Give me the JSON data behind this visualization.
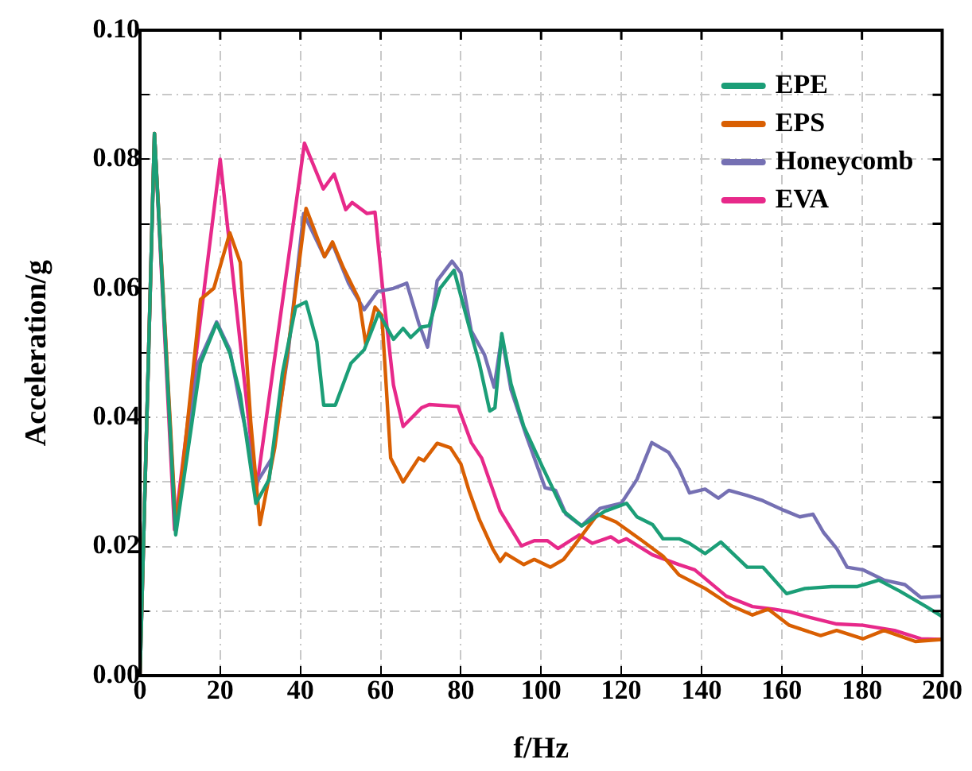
{
  "chart_data": {
    "type": "line",
    "xlabel": "f/Hz",
    "ylabel": "Acceleration/g",
    "xlim": [
      0,
      200
    ],
    "ylim": [
      0,
      0.1
    ],
    "xticks": [
      0,
      20,
      40,
      60,
      80,
      100,
      120,
      140,
      160,
      180,
      200
    ],
    "yticks": [
      {
        "value": 0,
        "label": "0.00"
      },
      {
        "value": 0.01,
        "label": null
      },
      {
        "value": 0.02,
        "label": "0.02"
      },
      {
        "value": 0.03,
        "label": null
      },
      {
        "value": 0.04,
        "label": "0.04"
      },
      {
        "value": 0.05,
        "label": null
      },
      {
        "value": 0.06,
        "label": "0.06"
      },
      {
        "value": 0.07,
        "label": null
      },
      {
        "value": 0.08,
        "label": "0.08"
      },
      {
        "value": 0.09,
        "label": null
      },
      {
        "value": 0.1,
        "label": "0.10"
      }
    ],
    "grid": true,
    "legend": "top right",
    "marker": "none",
    "line_style": "solid",
    "series": [
      {
        "name": "EPE",
        "color": "#1b9e77",
        "x": [
          0,
          3.6,
          8.9,
          15.1,
          19.1,
          22.4,
          25,
          28.9,
          32.2,
          35.5,
          38.8,
          41.4,
          44.1,
          45.8,
          48.7,
          52.6,
          55.9,
          59.5,
          63.2,
          65.6,
          67.5,
          70.2,
          72.1,
          74.8,
          78.3,
          82,
          84.6,
          87.2,
          88.5,
          90.2,
          92.5,
          95.7,
          100.3,
          105.6,
          110.1,
          116,
          121.3,
          123.9,
          127.8,
          130.4,
          134.4,
          137,
          140.9,
          144.8,
          151.4,
          155.3,
          161.2,
          165.8,
          172.4,
          178.9,
          184.2,
          189.4,
          196,
          199.9
        ],
        "values": [
          0,
          0.084,
          0.0218,
          0.0484,
          0.0546,
          0.05,
          0.0435,
          0.0267,
          0.0304,
          0.0468,
          0.0571,
          0.0579,
          0.0517,
          0.0419,
          0.0419,
          0.0484,
          0.0505,
          0.0562,
          0.0521,
          0.0538,
          0.0524,
          0.054,
          0.0542,
          0.06,
          0.0628,
          0.0542,
          0.0484,
          0.041,
          0.0415,
          0.053,
          0.0452,
          0.0386,
          0.0324,
          0.0255,
          0.0232,
          0.0255,
          0.0267,
          0.0246,
          0.0234,
          0.0212,
          0.0212,
          0.0205,
          0.0189,
          0.0207,
          0.0168,
          0.0168,
          0.0127,
          0.0135,
          0.0138,
          0.0138,
          0.0148,
          0.0131,
          0.0107,
          0.0092
        ]
      },
      {
        "name": "EPS",
        "color": "#d95f02",
        "x": [
          0,
          3.6,
          9,
          15.1,
          18.4,
          22.4,
          25,
          27.6,
          29.9,
          33.6,
          38.2,
          41.4,
          46,
          48,
          50.7,
          54.6,
          56.3,
          58.6,
          60.3,
          62.5,
          65.6,
          69.5,
          70.8,
          74.1,
          77.4,
          80,
          82,
          84.6,
          87.9,
          89.8,
          91.2,
          95.7,
          98.3,
          102.3,
          105.6,
          108.2,
          114.1,
          118.7,
          125.2,
          130.4,
          134.4,
          140.9,
          147.5,
          152.7,
          156.6,
          161.9,
          169.7,
          173.7,
          180.2,
          185.5,
          193.3,
          199.9
        ],
        "values": [
          0,
          0.084,
          0.0226,
          0.0583,
          0.06,
          0.0686,
          0.064,
          0.0394,
          0.0234,
          0.0353,
          0.0567,
          0.0724,
          0.0649,
          0.0672,
          0.0632,
          0.0583,
          0.0513,
          0.0571,
          0.0558,
          0.0337,
          0.03,
          0.0337,
          0.0333,
          0.036,
          0.0353,
          0.0328,
          0.0287,
          0.0242,
          0.0197,
          0.0177,
          0.0189,
          0.0172,
          0.018,
          0.0168,
          0.018,
          0.0201,
          0.025,
          0.0238,
          0.0209,
          0.0185,
          0.0156,
          0.0135,
          0.0108,
          0.0094,
          0.0103,
          0.0078,
          0.0062,
          0.007,
          0.0057,
          0.007,
          0.0053,
          0.0056
        ]
      },
      {
        "name": "Honeycomb",
        "color": "#7570b3",
        "x": [
          0,
          3.6,
          8.9,
          14.5,
          19.1,
          22.4,
          25,
          29.2,
          32.9,
          36.8,
          40.8,
          46,
          48,
          52,
          55.9,
          59.2,
          63.2,
          66.5,
          69.5,
          71.7,
          74.1,
          77.8,
          80,
          82.6,
          85.9,
          88.3,
          90.2,
          92.5,
          96.4,
          101,
          103.6,
          106.2,
          110.1,
          114.7,
          120,
          123.9,
          127.6,
          131.8,
          134.4,
          137,
          140.9,
          144.2,
          146.8,
          151.4,
          155.3,
          160.6,
          164.5,
          167.8,
          170.4,
          173.7,
          176.3,
          180.2,
          185.5,
          190.7,
          194.7,
          199.9
        ],
        "values": [
          0,
          0.084,
          0.0226,
          0.0484,
          0.0548,
          0.0505,
          0.0419,
          0.03,
          0.0337,
          0.0493,
          0.0716,
          0.0649,
          0.0669,
          0.0608,
          0.0567,
          0.0595,
          0.06,
          0.0608,
          0.0546,
          0.0509,
          0.0612,
          0.0642,
          0.0624,
          0.0534,
          0.0497,
          0.0447,
          0.0525,
          0.0443,
          0.037,
          0.0291,
          0.0287,
          0.025,
          0.0232,
          0.0259,
          0.0267,
          0.0304,
          0.0361,
          0.0346,
          0.032,
          0.0283,
          0.0289,
          0.0275,
          0.0287,
          0.0279,
          0.0271,
          0.0256,
          0.0246,
          0.025,
          0.0222,
          0.0197,
          0.0168,
          0.0164,
          0.0148,
          0.0141,
          0.0121,
          0.0123
        ]
      },
      {
        "name": "EVA",
        "color": "#e7298a",
        "x": [
          0,
          3.6,
          8.6,
          20,
          29,
          41,
          45.7,
          48.4,
          51.3,
          52.9,
          56.6,
          58.6,
          60.5,
          63.2,
          65.6,
          70.2,
          72.1,
          79.3,
          82.6,
          85.2,
          89.8,
          95.1,
          98.3,
          101.6,
          104.2,
          109.5,
          112.8,
          117.4,
          119.3,
          121.3,
          127.8,
          134.4,
          138.3,
          146.2,
          152.7,
          158,
          161.9,
          167.1,
          173.7,
          180.2,
          188.1,
          194.7,
          199.9
        ],
        "values": [
          0,
          0.084,
          0.0226,
          0.08,
          0.0287,
          0.0825,
          0.0754,
          0.0777,
          0.0722,
          0.0733,
          0.0716,
          0.0718,
          0.06,
          0.045,
          0.0386,
          0.0415,
          0.042,
          0.0417,
          0.0361,
          0.0337,
          0.0255,
          0.0201,
          0.0209,
          0.0209,
          0.0197,
          0.0218,
          0.0205,
          0.0215,
          0.0207,
          0.0212,
          0.0187,
          0.0172,
          0.0164,
          0.0123,
          0.0107,
          0.0103,
          0.0099,
          0.009,
          0.008,
          0.0078,
          0.007,
          0.0057,
          0.0056
        ]
      }
    ]
  }
}
